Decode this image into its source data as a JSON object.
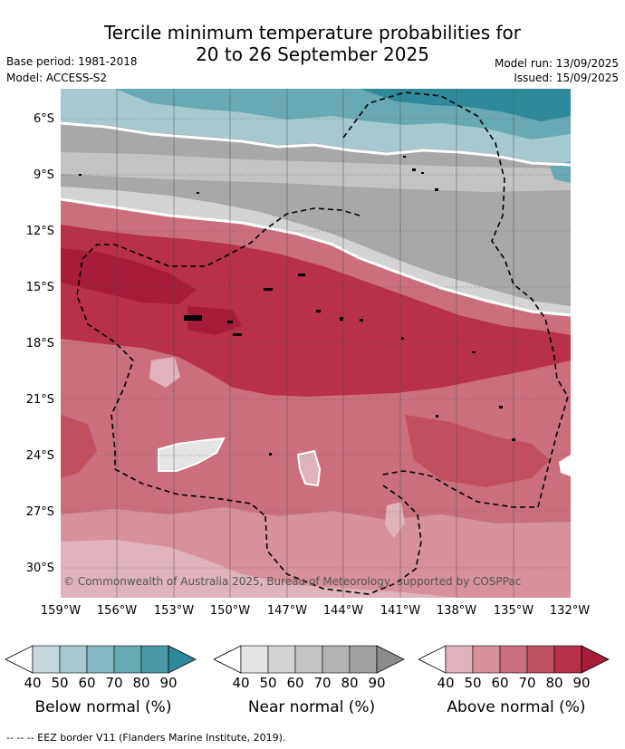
{
  "title": {
    "line1": "Tercile minimum temperature probabilities for",
    "line2": "20 to 26 September 2025"
  },
  "meta": {
    "base_period": "Base period: 1981-2018",
    "model": "Model: ACCESS-S2",
    "model_run": "Model run: 13/09/2025",
    "issued": "Issued: 15/09/2025"
  },
  "axes": {
    "lat_labels": [
      "6°S",
      "9°S",
      "12°S",
      "15°S",
      "18°S",
      "21°S",
      "24°S",
      "27°S",
      "30°S"
    ],
    "lon_labels": [
      "159°W",
      "156°W",
      "153°W",
      "150°W",
      "147°W",
      "144°W",
      "141°W",
      "138°W",
      "135°W",
      "132°W"
    ]
  },
  "copyright": "© Commonwealth of Australia 2025, Bureau of Meteorology, supported by COSPPac",
  "colorbars": [
    {
      "name": "Below normal (%)",
      "ticks": [
        "40",
        "50",
        "60",
        "70",
        "80",
        "90"
      ],
      "colors": [
        "#ffffff",
        "#c3d8dd",
        "#a5c9cf",
        "#87b9c2",
        "#69a9b5",
        "#4b99a8",
        "#2e8a9b"
      ]
    },
    {
      "name": "Near normal (%)",
      "ticks": [
        "40",
        "50",
        "60",
        "70",
        "80",
        "90"
      ],
      "colors": [
        "#ffffff",
        "#e4e4e4",
        "#d3d3d3",
        "#c3c3c3",
        "#b3b3b3",
        "#a3a3a3",
        "#8c8c8c"
      ]
    },
    {
      "name": "Above normal (%)",
      "ticks": [
        "40",
        "50",
        "60",
        "70",
        "80",
        "90"
      ],
      "colors": [
        "#ffffff",
        "#e0b3bc",
        "#d6919d",
        "#cb6f7e",
        "#c1505f",
        "#b8304a",
        "#a61c3a"
      ]
    }
  ],
  "footnote": "-- -- -- EEZ border V11 (Flanders Marine Institute, 2019)."
}
